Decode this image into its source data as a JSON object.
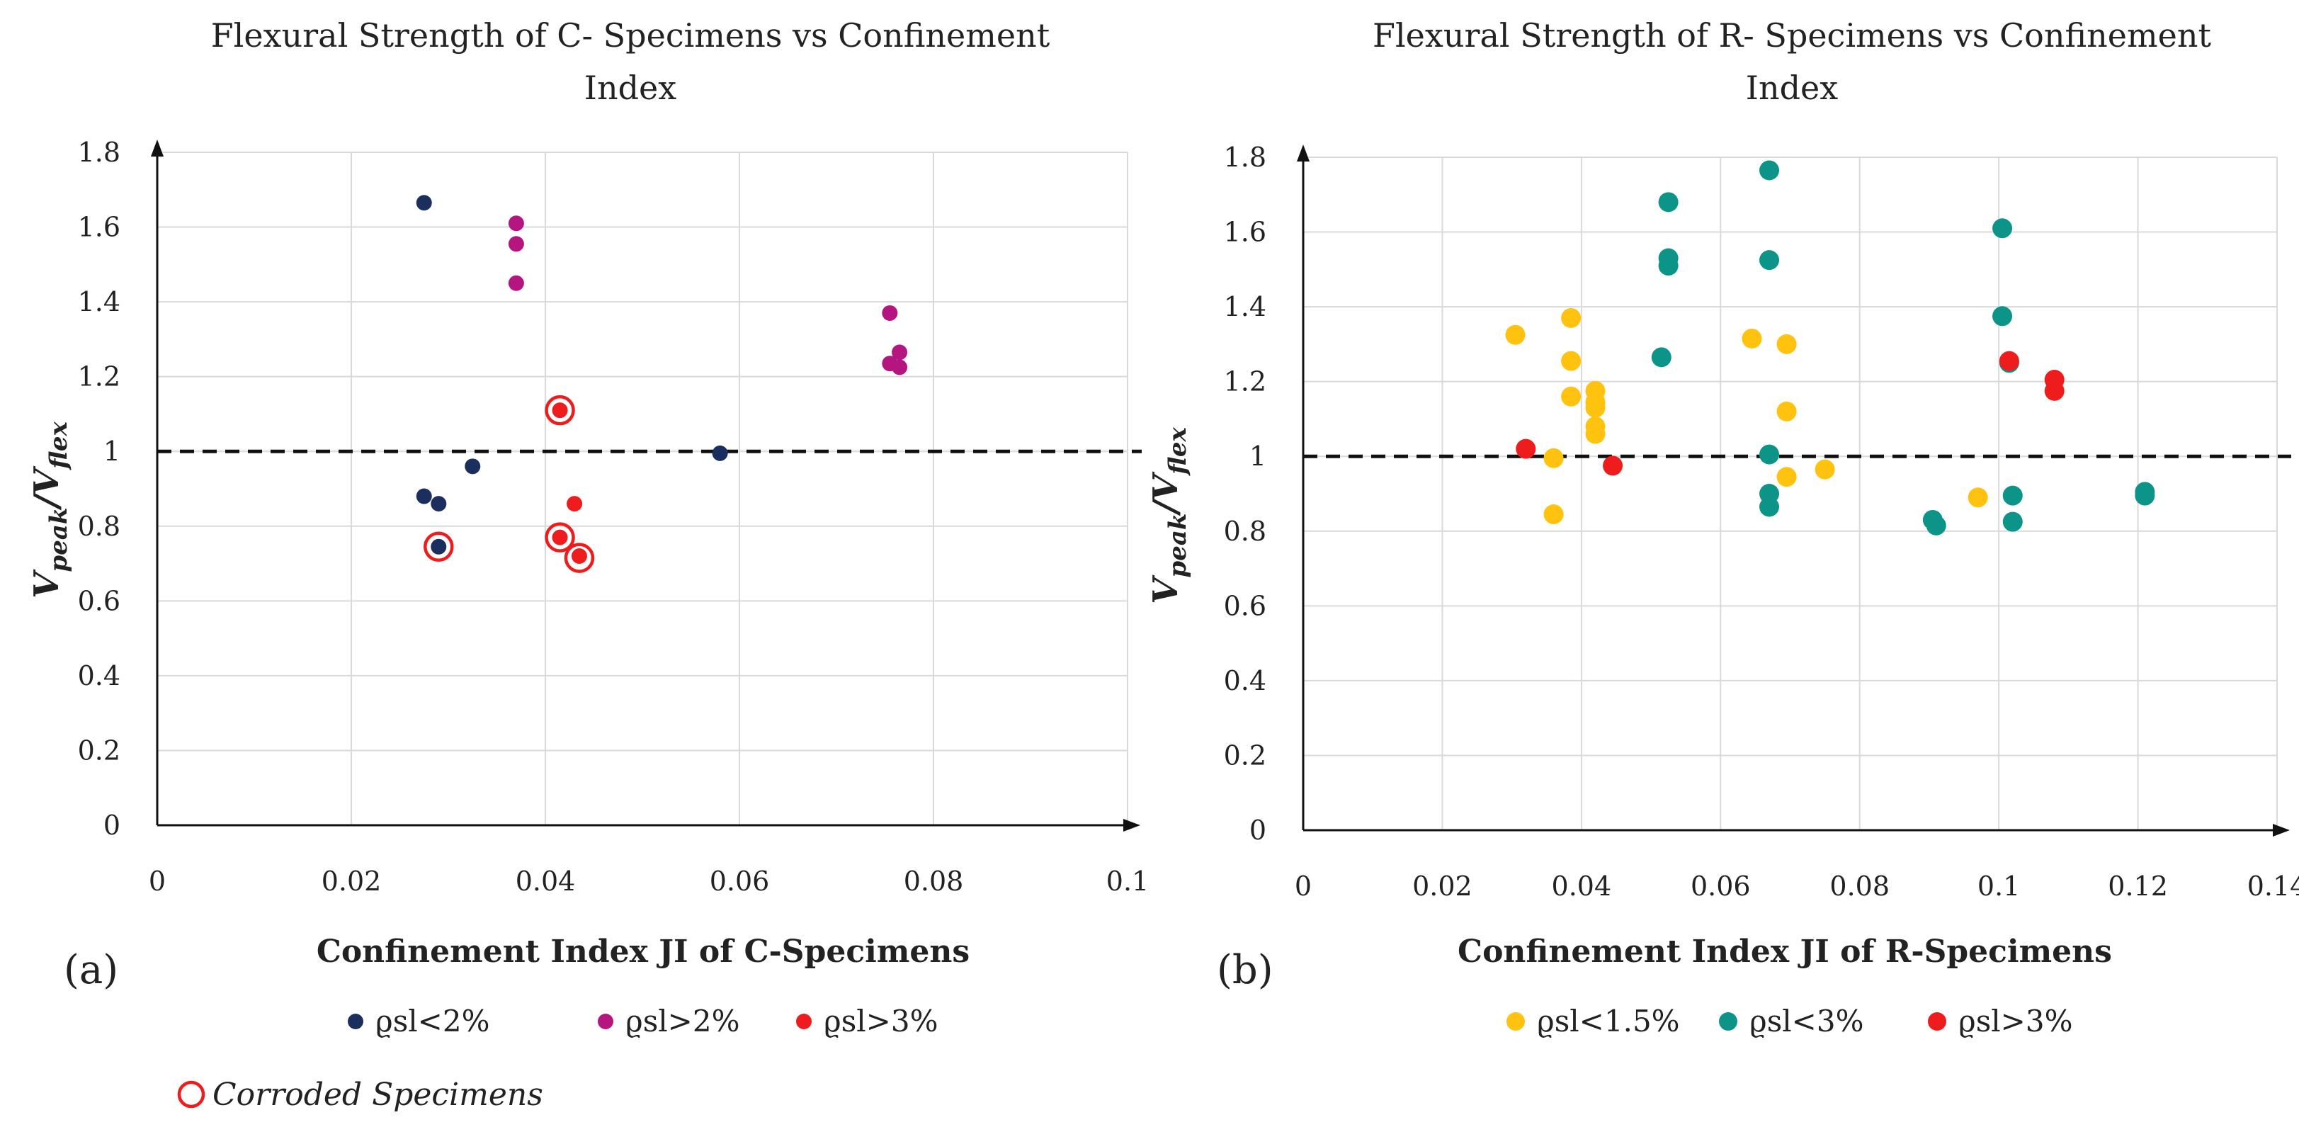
{
  "chart_data": [
    {
      "type": "scatter",
      "panel_label": "(a)",
      "title_line1": "Flexural Strength of C- Specimens vs Confinement",
      "title_line2": "Index",
      "xlabel": "Confinement Index JI of C-Specimens",
      "ylabel_main": "V",
      "ylabel_sub1": "peak",
      "ylabel_slash": "/V",
      "ylabel_sub2": "flex",
      "xlim": [
        0,
        0.1
      ],
      "ylim": [
        0,
        1.8
      ],
      "xticks": [
        "0",
        "0.02",
        "0.04",
        "0.06",
        "0.08",
        "0.1"
      ],
      "yticks": [
        "0",
        "0.2",
        "0.4",
        "0.6",
        "0.8",
        "1",
        "1.2",
        "1.4",
        "1.6",
        "1.8"
      ],
      "reference_line": 1.0,
      "series": [
        {
          "name": "ϱsl<2%",
          "color": "#1a2f5e",
          "points": [
            [
              0.0275,
              1.665
            ],
            [
              0.0275,
              0.88
            ],
            [
              0.029,
              0.86
            ],
            [
              0.029,
              0.745
            ],
            [
              0.0325,
              0.96
            ],
            [
              0.058,
              0.995
            ]
          ]
        },
        {
          "name": "ϱsl>2%",
          "color": "#b5157f",
          "points": [
            [
              0.037,
              1.61
            ],
            [
              0.037,
              1.555
            ],
            [
              0.037,
              1.45
            ],
            [
              0.0755,
              1.37
            ],
            [
              0.0755,
              1.235
            ],
            [
              0.0765,
              1.265
            ],
            [
              0.0765,
              1.225
            ]
          ]
        },
        {
          "name": "ϱsl>3%",
          "color": "#ee1c1c",
          "points": [
            [
              0.0415,
              1.11
            ],
            [
              0.043,
              0.86
            ],
            [
              0.0415,
              0.77
            ],
            [
              0.0435,
              0.72
            ]
          ]
        }
      ],
      "corroded_points": [
        [
          0.029,
          0.745
        ],
        [
          0.0415,
          1.11
        ],
        [
          0.0415,
          0.77
        ],
        [
          0.0435,
          0.715
        ]
      ]
    },
    {
      "type": "scatter",
      "panel_label": "(b)",
      "title_line1": "Flexural Strength of R- Specimens vs Confinement",
      "title_line2": "Index",
      "xlabel": "Confinement Index JI of R-Specimens",
      "ylabel_main": "V",
      "ylabel_sub1": "peak",
      "ylabel_slash": "/V",
      "ylabel_sub2": "flex",
      "xlim": [
        0,
        0.14
      ],
      "ylim": [
        0,
        1.8
      ],
      "xticks": [
        "0",
        "0.02",
        "0.04",
        "0.06",
        "0.08",
        "0.1",
        "0.12",
        "0.14"
      ],
      "yticks": [
        "0",
        "0.2",
        "0.4",
        "0.6",
        "0.8",
        "1",
        "1.2",
        "1.4",
        "1.6",
        "1.8"
      ],
      "reference_line": 1.0,
      "series": [
        {
          "name": "ϱsl<1.5%",
          "color": "#ffc20e",
          "points": [
            [
              0.0305,
              1.325
            ],
            [
              0.0385,
              1.37
            ],
            [
              0.0385,
              1.255
            ],
            [
              0.0385,
              1.16
            ],
            [
              0.042,
              1.175
            ],
            [
              0.042,
              1.145
            ],
            [
              0.042,
              1.13
            ],
            [
              0.042,
              1.08
            ],
            [
              0.042,
              1.06
            ],
            [
              0.036,
              0.995
            ],
            [
              0.036,
              0.845
            ],
            [
              0.0645,
              1.315
            ],
            [
              0.0695,
              1.3
            ],
            [
              0.0695,
              1.12
            ],
            [
              0.0695,
              0.945
            ],
            [
              0.075,
              0.965
            ],
            [
              0.097,
              0.89
            ]
          ]
        },
        {
          "name": "ϱsl<3%",
          "color": "#0d9488",
          "points": [
            [
              0.0525,
              1.68
            ],
            [
              0.0525,
              1.53
            ],
            [
              0.0525,
              1.51
            ],
            [
              0.0515,
              1.265
            ],
            [
              0.067,
              1.765
            ],
            [
              0.067,
              1.525
            ],
            [
              0.067,
              1.005
            ],
            [
              0.067,
              0.9
            ],
            [
              0.067,
              0.865
            ],
            [
              0.1005,
              1.61
            ],
            [
              0.1005,
              1.375
            ],
            [
              0.1015,
              1.25
            ],
            [
              0.102,
              0.895
            ],
            [
              0.102,
              0.825
            ],
            [
              0.0905,
              0.83
            ],
            [
              0.091,
              0.815
            ],
            [
              0.121,
              0.905
            ],
            [
              0.121,
              0.895
            ]
          ]
        },
        {
          "name": "ϱsl>3%",
          "color": "#ee1c1c",
          "points": [
            [
              0.032,
              1.02
            ],
            [
              0.0445,
              0.975
            ],
            [
              0.1015,
              1.255
            ],
            [
              0.108,
              1.205
            ],
            [
              0.108,
              1.175
            ]
          ]
        }
      ]
    }
  ],
  "corroded_legend": "Corroded Specimens"
}
